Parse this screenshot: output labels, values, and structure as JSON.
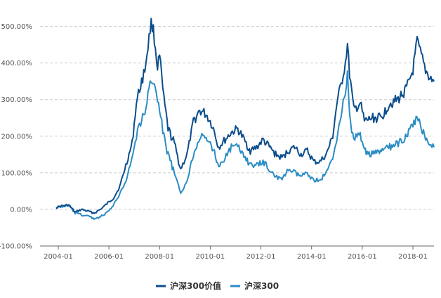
{
  "chart_data": {
    "type": "line",
    "title": "",
    "xlabel": "",
    "ylabel": "",
    "ylim": [
      -100,
      530
    ],
    "y_ticks": [
      "-100.00%",
      "0.00%",
      "100.00%",
      "200.00%",
      "300.00%",
      "400.00%",
      "500.00%"
    ],
    "x_ticks": [
      "2004-01",
      "2006-01",
      "2008-01",
      "2010-01",
      "2012-01",
      "2014-01",
      "2016-01",
      "2018-01"
    ],
    "grid": "horizontal dashed",
    "legend_position": "bottom",
    "series": [
      {
        "name": "沪深300价值",
        "color": "#0a4d8c",
        "x": [
          "2003-12",
          "2004-03",
          "2004-06",
          "2004-09",
          "2004-12",
          "2005-03",
          "2005-06",
          "2005-09",
          "2005-12",
          "2006-03",
          "2006-06",
          "2006-09",
          "2006-12",
          "2007-02",
          "2007-04",
          "2007-06",
          "2007-08",
          "2007-09",
          "2007-10",
          "2007-12",
          "2008-01",
          "2008-03",
          "2008-05",
          "2008-08",
          "2008-11",
          "2009-02",
          "2009-05",
          "2009-08",
          "2009-11",
          "2010-02",
          "2010-05",
          "2010-08",
          "2010-11",
          "2011-02",
          "2011-05",
          "2011-08",
          "2011-11",
          "2012-02",
          "2012-05",
          "2012-08",
          "2012-11",
          "2013-02",
          "2013-05",
          "2013-08",
          "2013-11",
          "2014-02",
          "2014-05",
          "2014-08",
          "2014-11",
          "2015-01",
          "2015-03",
          "2015-05",
          "2015-06",
          "2015-07",
          "2015-09",
          "2015-12",
          "2016-02",
          "2016-06",
          "2016-10",
          "2017-02",
          "2017-06",
          "2017-10",
          "2018-01",
          "2018-03",
          "2018-05",
          "2018-07",
          "2018-09",
          "2018-11"
        ],
        "values": [
          5,
          10,
          12,
          -8,
          0,
          -5,
          -10,
          0,
          15,
          30,
          60,
          120,
          180,
          290,
          340,
          380,
          470,
          510,
          490,
          390,
          420,
          300,
          220,
          180,
          110,
          150,
          240,
          270,
          260,
          230,
          170,
          190,
          210,
          220,
          190,
          160,
          170,
          190,
          170,
          150,
          140,
          160,
          170,
          150,
          160,
          130,
          130,
          150,
          200,
          290,
          340,
          400,
          450,
          370,
          270,
          290,
          240,
          250,
          250,
          290,
          300,
          330,
          380,
          460,
          420,
          380,
          360,
          350
        ]
      },
      {
        "name": "沪深300",
        "color": "#2a8cc4",
        "x": [
          "2003-12",
          "2004-03",
          "2004-06",
          "2004-09",
          "2004-12",
          "2005-03",
          "2005-06",
          "2005-09",
          "2005-12",
          "2006-03",
          "2006-06",
          "2006-09",
          "2006-12",
          "2007-02",
          "2007-04",
          "2007-06",
          "2007-08",
          "2007-09",
          "2007-10",
          "2007-12",
          "2008-01",
          "2008-03",
          "2008-05",
          "2008-08",
          "2008-11",
          "2009-02",
          "2009-05",
          "2009-08",
          "2009-11",
          "2010-02",
          "2010-05",
          "2010-08",
          "2010-11",
          "2011-02",
          "2011-05",
          "2011-08",
          "2011-11",
          "2012-02",
          "2012-05",
          "2012-08",
          "2012-11",
          "2013-02",
          "2013-05",
          "2013-08",
          "2013-11",
          "2014-02",
          "2014-05",
          "2014-08",
          "2014-11",
          "2015-01",
          "2015-03",
          "2015-05",
          "2015-06",
          "2015-07",
          "2015-09",
          "2015-12",
          "2016-02",
          "2016-06",
          "2016-10",
          "2017-02",
          "2017-06",
          "2017-10",
          "2018-01",
          "2018-03",
          "2018-05",
          "2018-07",
          "2018-09",
          "2018-11"
        ],
        "values": [
          5,
          8,
          10,
          -10,
          -15,
          -18,
          -25,
          -20,
          -10,
          10,
          40,
          80,
          140,
          200,
          240,
          260,
          330,
          360,
          350,
          300,
          270,
          200,
          150,
          100,
          40,
          80,
          150,
          200,
          190,
          170,
          120,
          140,
          170,
          170,
          150,
          120,
          120,
          130,
          110,
          90,
          80,
          110,
          100,
          90,
          100,
          80,
          80,
          100,
          140,
          200,
          260,
          320,
          370,
          250,
          190,
          210,
          160,
          150,
          160,
          170,
          180,
          200,
          230,
          250,
          220,
          200,
          180,
          170
        ]
      }
    ]
  }
}
